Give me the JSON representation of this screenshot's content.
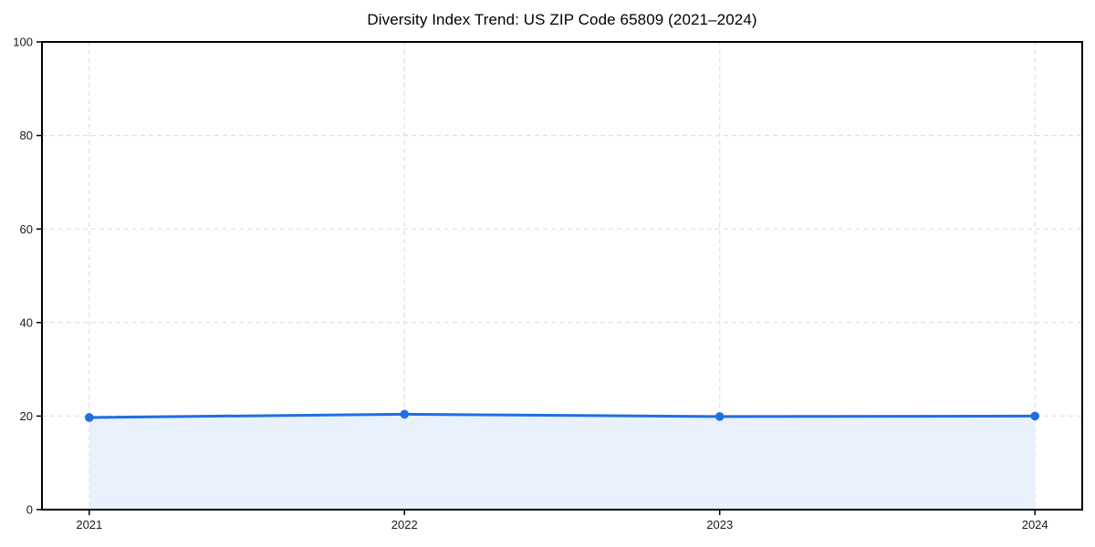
{
  "page": {
    "background": "#ffffff"
  },
  "chart_data": {
    "type": "line",
    "title": "Diversity Index Trend: US ZIP Code 65809 (2021–2024)",
    "categories": [
      "2021",
      "2022",
      "2023",
      "2024"
    ],
    "series": [
      {
        "name": "Diversity Index",
        "values": [
          19.7,
          20.4,
          19.9,
          20.0
        ]
      }
    ],
    "xlabel": "",
    "ylabel": "",
    "ylim": [
      0,
      100
    ],
    "yticks": [
      0,
      20,
      40,
      60,
      80,
      100
    ],
    "grid": true,
    "grid_style": "dashed",
    "legend": "none",
    "area_fill": true,
    "markers": true,
    "x_margin_fraction": 0.05,
    "colors": {
      "line": "#1f6fe0",
      "marker": "#1f6fe0",
      "area": "#e8f1fc",
      "grid": "#e0e0e0",
      "axis": "#000000",
      "tick_text": "#1a1a1a",
      "title_text": "#000000"
    }
  }
}
